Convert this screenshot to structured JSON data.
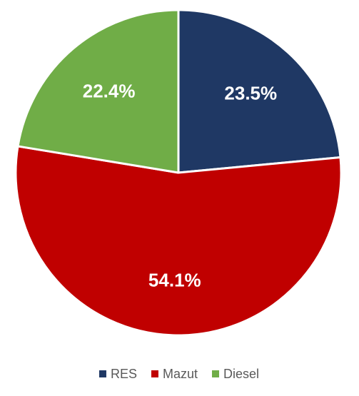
{
  "chart_data": {
    "type": "pie",
    "title": "",
    "categories": [
      "RES",
      "Mazut",
      "Diesel"
    ],
    "values": [
      23.5,
      54.1,
      22.4
    ],
    "labels": [
      "23.5%",
      "54.1%",
      "22.4%"
    ],
    "colors": [
      "#1f3864",
      "#c00000",
      "#70ad47"
    ],
    "label_color": "#ffffff",
    "start_angle_deg": 0,
    "direction": "clockwise",
    "legend": {
      "position": "bottom",
      "items": [
        {
          "name": "RES",
          "color": "#1f3864"
        },
        {
          "name": "Mazut",
          "color": "#c00000"
        },
        {
          "name": "Diesel",
          "color": "#70ad47"
        }
      ]
    }
  }
}
